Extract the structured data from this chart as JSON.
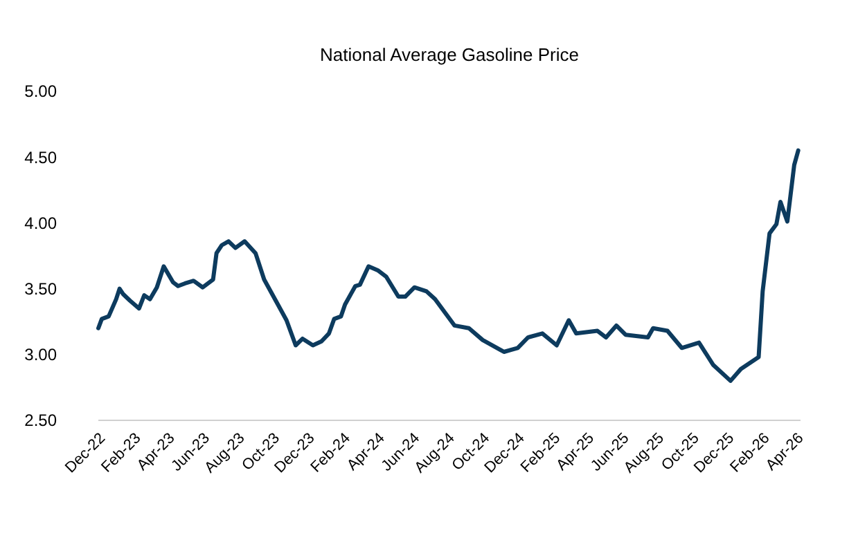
{
  "chart_data": {
    "type": "line",
    "title": "National Average Gasoline Price",
    "grid": false,
    "line_style": "solid",
    "marker": "none",
    "xlim": [
      "2022-12-01",
      "2026-04-08"
    ],
    "xticks": [
      {
        "value": "2022-12-01",
        "label": "Dec-22"
      },
      {
        "value": "2023-02-01",
        "label": "Feb-23"
      },
      {
        "value": "2023-04-01",
        "label": "Apr-23"
      },
      {
        "value": "2023-06-01",
        "label": "Jun-23"
      },
      {
        "value": "2023-08-01",
        "label": "Aug-23"
      },
      {
        "value": "2023-10-01",
        "label": "Oct-23"
      },
      {
        "value": "2023-12-01",
        "label": "Dec-23"
      },
      {
        "value": "2024-02-01",
        "label": "Feb-24"
      },
      {
        "value": "2024-04-01",
        "label": "Apr-24"
      },
      {
        "value": "2024-06-01",
        "label": "Jun-24"
      },
      {
        "value": "2024-08-01",
        "label": "Aug-24"
      },
      {
        "value": "2024-10-01",
        "label": "Oct-24"
      },
      {
        "value": "2024-12-01",
        "label": "Dec-24"
      },
      {
        "value": "2025-02-01",
        "label": "Feb-25"
      },
      {
        "value": "2025-04-01",
        "label": "Apr-25"
      },
      {
        "value": "2025-06-01",
        "label": "Jun-25"
      },
      {
        "value": "2025-08-01",
        "label": "Aug-25"
      },
      {
        "value": "2025-10-01",
        "label": "Oct-25"
      },
      {
        "value": "2025-12-01",
        "label": "Dec-25"
      },
      {
        "value": "2026-02-01",
        "label": "Feb-26"
      },
      {
        "value": "2026-04-01",
        "label": "Apr-26"
      }
    ],
    "ylim": [
      2.5,
      5
    ],
    "yticks": [
      {
        "value": 2.5,
        "label": "2.50"
      },
      {
        "value": 3,
        "label": "3.00"
      },
      {
        "value": 3.5,
        "label": "3.50"
      },
      {
        "value": 4,
        "label": "4.00"
      },
      {
        "value": 4.5,
        "label": "4.50"
      },
      {
        "value": 5,
        "label": "5.00"
      }
    ],
    "x": [
      "2022-12-01",
      "2022-12-07",
      "2022-12-19",
      "2023-01-01",
      "2023-01-07",
      "2023-01-13",
      "2023-01-25",
      "2023-02-10",
      "2023-02-19",
      "2023-03-01",
      "2023-03-13",
      "2023-03-25",
      "2023-04-10",
      "2023-04-19",
      "2023-05-01",
      "2023-05-16",
      "2023-06-01",
      "2023-06-19",
      "2023-06-25",
      "2023-07-04",
      "2023-07-16",
      "2023-07-28",
      "2023-08-13",
      "2023-09-01",
      "2023-09-16",
      "2023-10-10",
      "2023-10-25",
      "2023-11-10",
      "2023-11-22",
      "2023-12-10",
      "2023-12-25",
      "2024-01-07",
      "2024-01-16",
      "2024-01-28",
      "2024-02-04",
      "2024-02-22",
      "2024-03-01",
      "2024-03-16",
      "2024-04-01",
      "2024-04-16",
      "2024-05-07",
      "2024-05-19",
      "2024-06-04",
      "2024-06-25",
      "2024-07-10",
      "2024-08-13",
      "2024-09-07",
      "2024-10-01",
      "2024-11-07",
      "2024-12-01",
      "2024-12-19",
      "2025-01-13",
      "2025-02-07",
      "2025-02-28",
      "2025-03-13",
      "2025-04-19",
      "2025-05-04",
      "2025-05-22",
      "2025-06-07",
      "2025-07-16",
      "2025-07-25",
      "2025-08-19",
      "2025-09-13",
      "2025-10-13",
      "2025-11-07",
      "2025-12-07",
      "2025-12-25",
      "2026-01-25",
      "2026-02-01",
      "2026-02-13",
      "2026-02-25",
      "2026-03-04",
      "2026-03-16",
      "2026-03-28",
      "2026-04-04"
    ],
    "series": [
      {
        "color": "#0d3b5e",
        "values": [
          3.2,
          3.27,
          3.29,
          3.42,
          3.5,
          3.46,
          3.41,
          3.35,
          3.45,
          3.42,
          3.51,
          3.67,
          3.55,
          3.52,
          3.54,
          3.56,
          3.51,
          3.57,
          3.77,
          3.83,
          3.86,
          3.81,
          3.86,
          3.77,
          3.57,
          3.38,
          3.26,
          3.07,
          3.12,
          3.07,
          3.1,
          3.16,
          3.27,
          3.29,
          3.38,
          3.52,
          3.53,
          3.67,
          3.64,
          3.59,
          3.44,
          3.44,
          3.51,
          3.48,
          3.42,
          3.22,
          3.2,
          3.11,
          3.02,
          3.05,
          3.13,
          3.16,
          3.07,
          3.26,
          3.16,
          3.18,
          3.13,
          3.22,
          3.15,
          3.13,
          3.2,
          3.18,
          3.05,
          3.09,
          2.92,
          2.8,
          2.89,
          2.98,
          3.48,
          3.92,
          3.99,
          4.16,
          4.01,
          4.44,
          4.55
        ]
      }
    ]
  }
}
